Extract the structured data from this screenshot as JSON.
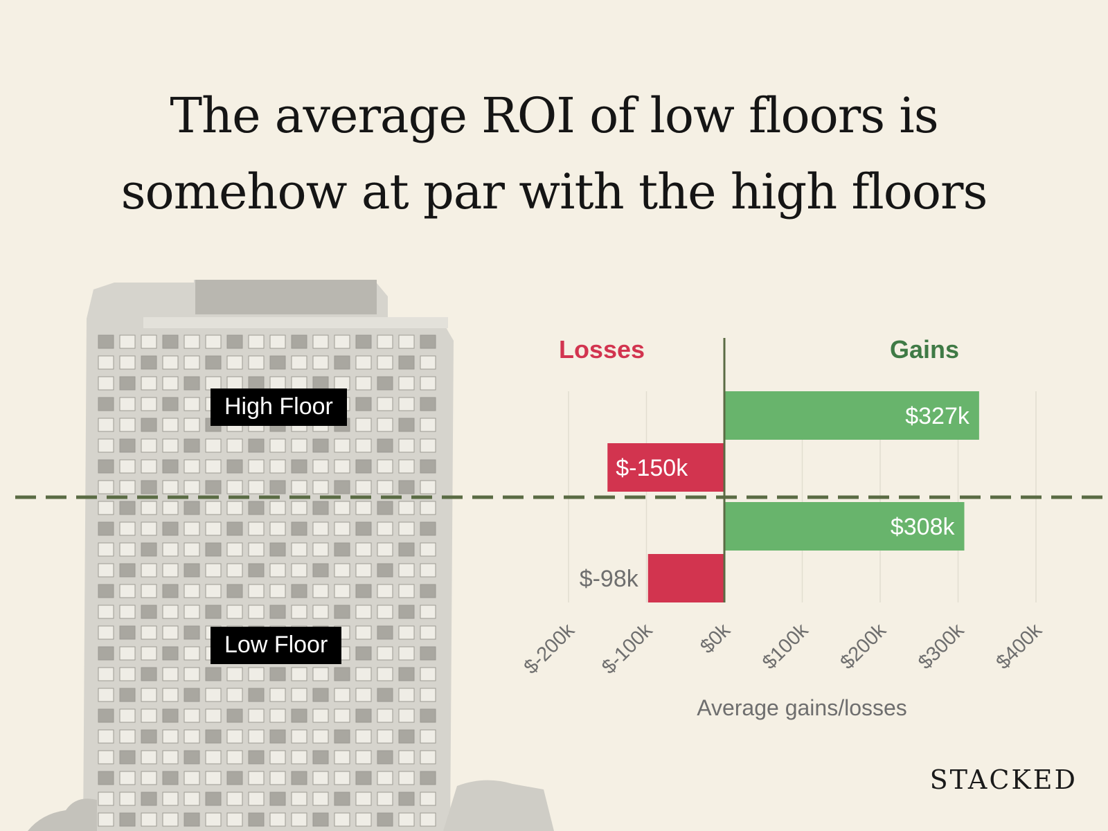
{
  "page": {
    "title_lines": [
      "The average ROI of low floors is",
      "somehow at par with the high floors"
    ],
    "brand": "STACKED",
    "labels": {
      "high_floor": "High Floor",
      "low_floor": "Low Floor"
    }
  },
  "chart_data": {
    "type": "bar",
    "orientation": "horizontal",
    "title": "The average ROI of low floors is somehow at par with the high floors",
    "xlabel": "Average gains/losses",
    "xlim": [
      -200,
      400
    ],
    "xticks": [
      -200,
      -100,
      0,
      100,
      200,
      300,
      400
    ],
    "tick_labels": [
      "$-200k",
      "$-100k",
      "$0k",
      "$100k",
      "$200k",
      "$300k",
      "$400k"
    ],
    "side_labels": {
      "losses": "Losses",
      "gains": "Gains"
    },
    "groups": [
      {
        "name": "High Floor",
        "bars": [
          {
            "value": 327,
            "label": "$327k",
            "kind": "gain"
          },
          {
            "value": -150,
            "label": "$-150k",
            "kind": "loss"
          }
        ]
      },
      {
        "name": "Low Floor",
        "bars": [
          {
            "value": 308,
            "label": "$308k",
            "kind": "gain"
          },
          {
            "value": -98,
            "label": "$-98k",
            "kind": "loss"
          }
        ]
      }
    ],
    "colors": {
      "gain": "#68b46c",
      "loss": "#d2344f",
      "gains_label": "#3f7a45",
      "losses_label": "#d2344f",
      "axis": "#5a6b44",
      "divider": "#5a6b44"
    }
  }
}
